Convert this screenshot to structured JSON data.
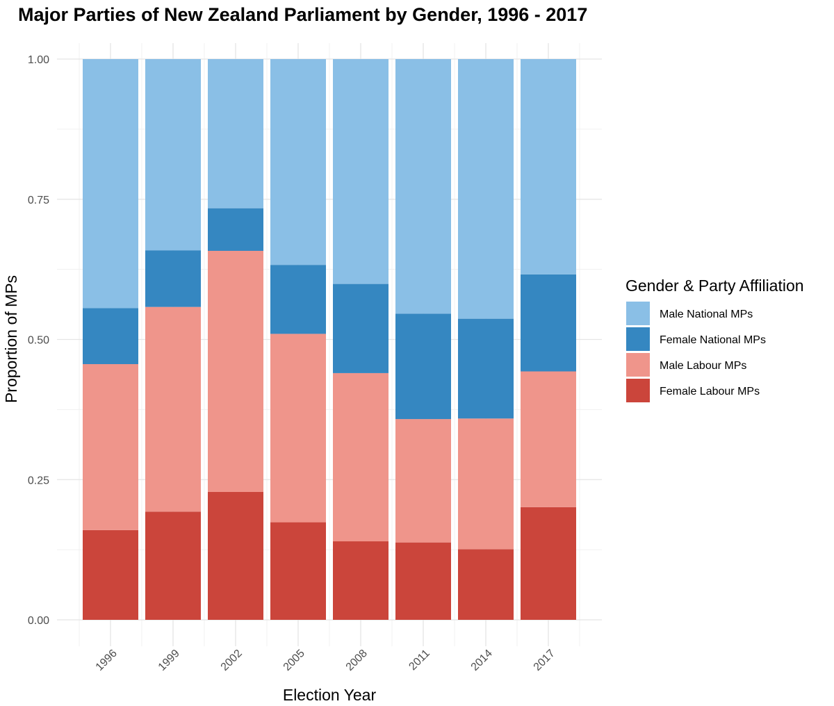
{
  "chart_data": {
    "type": "bar",
    "stacked": true,
    "title": "Major Parties of New Zealand Parliament by Gender, 1996 - 2017",
    "xlabel": "Election Year",
    "ylabel": "Proportion of MPs",
    "ylim": [
      0,
      1
    ],
    "yticks": [
      "0.00",
      "0.25",
      "0.50",
      "0.75",
      "1.00"
    ],
    "categories": [
      "1996",
      "1999",
      "2002",
      "2005",
      "2008",
      "2011",
      "2014",
      "2017"
    ],
    "legend": {
      "title": "Gender & Party Affiliation",
      "placement": "right"
    },
    "series": [
      {
        "name": "Female Labour MPs",
        "color": "#cb453b",
        "values": [
          0.16,
          0.193,
          0.228,
          0.174,
          0.14,
          0.138,
          0.126,
          0.201
        ]
      },
      {
        "name": "Male Labour MPs",
        "color": "#ef958b",
        "values": [
          0.296,
          0.365,
          0.43,
          0.336,
          0.3,
          0.22,
          0.233,
          0.242
        ]
      },
      {
        "name": "Female National MPs",
        "color": "#3587c1",
        "values": [
          0.1,
          0.101,
          0.076,
          0.123,
          0.159,
          0.188,
          0.178,
          0.173
        ]
      },
      {
        "name": "Male National MPs",
        "color": "#8abfe6",
        "values": [
          0.444,
          0.341,
          0.266,
          0.367,
          0.401,
          0.454,
          0.463,
          0.384
        ]
      }
    ],
    "grid": true
  }
}
